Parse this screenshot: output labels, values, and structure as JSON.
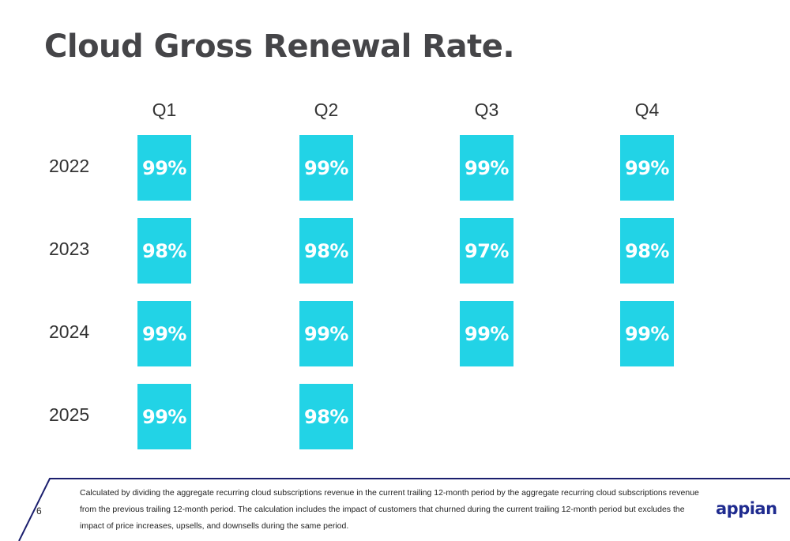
{
  "title": "Cloud Gross Renewal Rate.",
  "chart_data": {
    "type": "table",
    "columns": [
      "Q1",
      "Q2",
      "Q3",
      "Q4"
    ],
    "rows": [
      {
        "year": "2022",
        "values": [
          "99%",
          "99%",
          "99%",
          "99%"
        ]
      },
      {
        "year": "2023",
        "values": [
          "98%",
          "98%",
          "97%",
          "98%"
        ]
      },
      {
        "year": "2024",
        "values": [
          "99%",
          "99%",
          "99%",
          "99%"
        ]
      },
      {
        "year": "2025",
        "values": [
          "99%",
          "98%",
          null,
          null
        ]
      }
    ]
  },
  "colors": {
    "cell": "#22d3e6",
    "accent": "#1b1f6e",
    "logo": "#1f2b8f"
  },
  "footer": {
    "page_number": "6",
    "footnote": "Calculated by dividing the aggregate recurring cloud subscriptions revenue in the current trailing 12-month period by the aggregate recurring cloud subscriptions revenue from the previous trailing 12-month period. The calculation includes the impact of customers that churned during the current trailing 12-month period but excludes the impact of price increases, upsells, and downsells during the same period.",
    "logo_text": "appian"
  }
}
